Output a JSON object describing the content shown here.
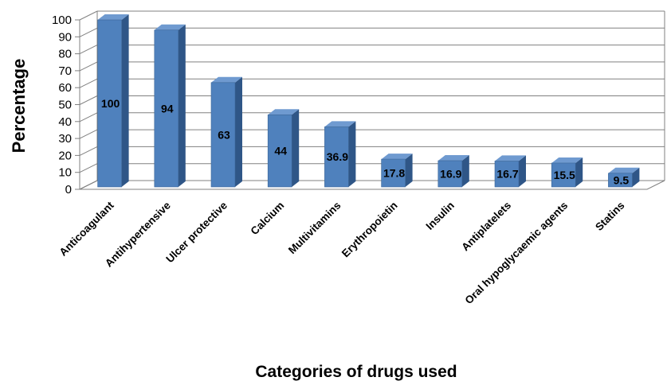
{
  "chart_data": {
    "type": "bar",
    "categories": [
      "Anticoagulant",
      "Antihypertensive",
      "Ulcer protective",
      "Calcium",
      "Multivitamins",
      "Erythropoietin",
      "Insulin",
      "Antiplatelets",
      "Oral hypoglycaemic agents",
      "Statins"
    ],
    "values": [
      100,
      94,
      63,
      44,
      36.9,
      17.8,
      16.9,
      16.7,
      15.5,
      9.5
    ],
    "data_labels": [
      "100",
      "94",
      "63",
      "44",
      "36.9",
      "17.8",
      "16.9",
      "16.7",
      "15.5",
      "9.5"
    ],
    "title": "",
    "xlabel": "Categories of drugs used",
    "ylabel": "Percentage",
    "ylim": [
      0,
      100
    ],
    "yticks": [
      0,
      10,
      20,
      30,
      40,
      50,
      60,
      70,
      80,
      90,
      100
    ],
    "grid": true,
    "legend": "none",
    "style": "3d-column",
    "colors": {
      "bar_front": "#4f81bd",
      "bar_side": "#2f5687",
      "bar_top": "#6f9ad0",
      "grid": "#808080"
    }
  }
}
